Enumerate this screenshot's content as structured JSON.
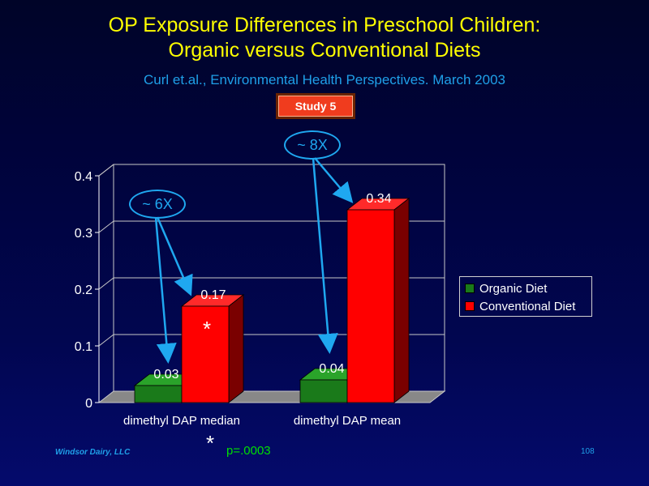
{
  "slide": {
    "title_line1": "OP Exposure Differences in Preschool Children:",
    "title_line2": "Organic versus Conventional Diets",
    "citation": "Curl et.al., Environmental Health Perspectives. March 2003",
    "badge": "Study  5",
    "footer_left": "Windsor Dairy, LLC",
    "page_number": "108",
    "footnote_marker": "*",
    "footnote_text": "p=.0003"
  },
  "annotations": [
    {
      "label": "~ 6X"
    },
    {
      "label": "~ 8X"
    },
    {
      "label": "*"
    }
  ],
  "colors": {
    "title": "#ffff00",
    "accent": "#1fa0e8",
    "organic": "#1a7a1a",
    "conventional": "#ff0000"
  },
  "chart_data": {
    "type": "bar",
    "categories": [
      "dimethyl DAP median",
      "dimethyl DAP mean"
    ],
    "series": [
      {
        "name": "Organic Diet",
        "values": [
          0.03,
          0.04
        ],
        "data_labels": [
          "0.03",
          "0.04"
        ]
      },
      {
        "name": "Conventional Diet",
        "values": [
          0.17,
          0.34
        ],
        "data_labels": [
          "0.17",
          "0.34"
        ]
      }
    ],
    "y_ticks": [
      "0",
      "0.1",
      "0.2",
      "0.3",
      "0.4"
    ],
    "ylim": [
      0,
      0.4
    ],
    "grid": true,
    "legend_position": "right"
  }
}
